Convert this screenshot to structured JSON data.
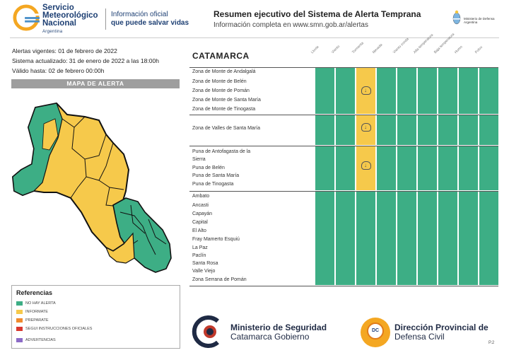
{
  "header": {
    "org_line1": "Servicio",
    "org_line2": "Meteorológico",
    "org_line3": "Nacional",
    "org_country": "Argentina",
    "slogan_line1": "Información oficial",
    "slogan_line2": "que puede salvar vidas",
    "title": "Resumen ejecutivo del Sistema de Alerta Temprana",
    "subtitle": "Información completa en www.smn.gob.ar/alertas",
    "ministry_line1": "Ministerio de Defensa",
    "ministry_line2": "Argentina"
  },
  "info": {
    "alerts_valid": "Alertas vigentes: 01 de febrero de 2022",
    "updated": "Sistema actualizado: 31 de enero de 2022 a las 18:00h",
    "valid_until": "Válido hasta: 02 de febrero 00:00h"
  },
  "map_title": "MAPA DE ALERTA",
  "references": {
    "title": "Referencias",
    "items": [
      {
        "label": "NO HAY ALERTA",
        "color": "#3dae85"
      },
      {
        "label": "INFORMATE",
        "color": "#f6c94b"
      },
      {
        "label": "PREPARATE",
        "color": "#f08a2d"
      },
      {
        "label": "SEGUI INSTRUCCIONES OFICIALES",
        "color": "#d9382f"
      },
      {
        "label": "ADVERTENCIAS",
        "color": "#8c6bc7"
      }
    ]
  },
  "table": {
    "region": "CATAMARCA",
    "columns": [
      "Lluvia",
      "Viento",
      "Tormenta",
      "Nevada",
      "Viento zonda",
      "Alta temperatura",
      "Baja temperatura",
      "Humo",
      "Polvo",
      "Niebla"
    ],
    "groups": [
      {
        "zones": [
          "Zona de Monte de Andalgalá",
          "Zona de Monte de Belén",
          "Zona de Monte de Pomán",
          "Zona de Monte de Santa María",
          "Zona de Monte de Tinogasta"
        ],
        "storm": "informate"
      },
      {
        "zones": [
          "Zona de Valles de Santa María"
        ],
        "storm": "informate"
      },
      {
        "zones": [
          "Puna de Antofagasta de la",
          "Sierra",
          "Puna de Belén",
          "Puna de Santa María",
          "Puna de Tinogasta"
        ],
        "storm": "informate"
      },
      {
        "zones": [
          "Ambato",
          "Ancasti",
          "Capayán",
          "Capital",
          "El Alto",
          "Fray Mamerto Esquiú",
          "La Paz",
          "Paclín",
          "Santa Rosa",
          "Valle Viejo",
          "Zona Serrana de Pomán"
        ],
        "storm": "none"
      }
    ]
  },
  "footer": {
    "ministry_bold": "Ministerio de Seguridad",
    "ministry_sub": "Catamarca Gobierno",
    "dc_bold": "Dirección Provincial de",
    "dc_sub": "Defensa Civil",
    "dc_badge": "DC",
    "page": "P.2"
  }
}
